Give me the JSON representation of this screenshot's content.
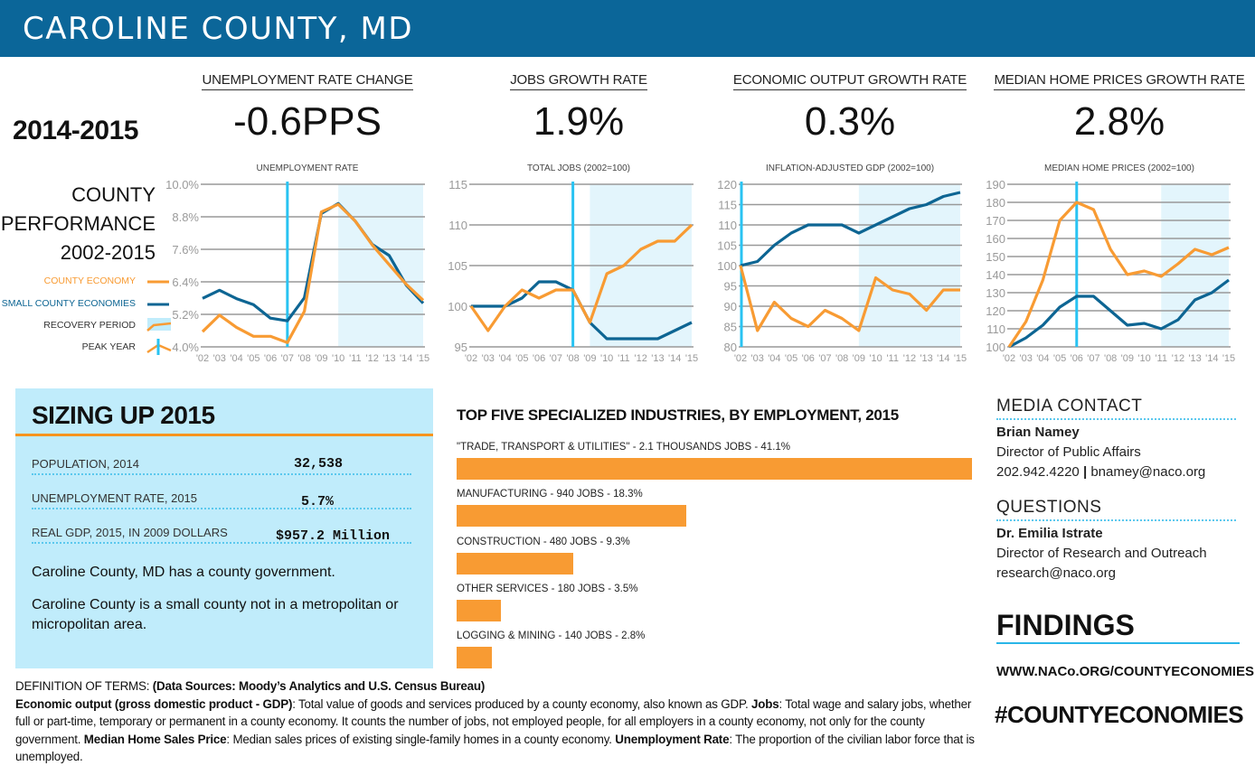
{
  "header": {
    "title": "CAROLINE COUNTY, MD"
  },
  "period": "2014-2015",
  "kpis": [
    {
      "label": "UNEMPLOYMENT RATE CHANGE",
      "value": "-0.6PPS"
    },
    {
      "label": "JOBS GROWTH RATE",
      "value": "1.9%"
    },
    {
      "label": "ECONOMIC OUTPUT GROWTH RATE",
      "value": "0.3%"
    },
    {
      "label": "MEDIAN HOME PRICES GROWTH RATE",
      "value": "2.8%"
    }
  ],
  "performance": {
    "title_lines": [
      "COUNTY",
      "PERFORMANCE",
      "2002-2015"
    ],
    "legend": {
      "county": "COUNTY ECONOMY",
      "small": "SMALL COUNTY ECONOMIES",
      "recovery": "RECOVERY PERIOD",
      "peak": "PEAK YEAR"
    }
  },
  "colors": {
    "county": "#f89b33",
    "small": "#0d6593",
    "peak": "#29c3f2",
    "recovery": "#e3f5fc",
    "grid": "#999999",
    "header": "#0b6699"
  },
  "chart_data": [
    {
      "type": "line",
      "title": "UNEMPLOYMENT RATE",
      "x": [
        2002,
        2003,
        2004,
        2005,
        2006,
        2007,
        2008,
        2009,
        2010,
        2011,
        2012,
        2013,
        2014,
        2015
      ],
      "x_tick_labels": [
        "'02",
        "'03",
        "'04",
        "'05",
        "'06",
        "'07",
        "'08",
        "'09",
        "'10",
        "'11",
        "'12",
        "'13",
        "'14",
        "'15"
      ],
      "ylim": [
        4.0,
        10.0
      ],
      "y_tick_labels": [
        "4.0%",
        "5.2%",
        "6.4%",
        "7.6%",
        "8.8%",
        "10.0%"
      ],
      "y_ticks": [
        4.0,
        5.2,
        6.4,
        7.6,
        8.8,
        10.0
      ],
      "peak_year": 2007,
      "recovery_start": 2010,
      "grid": true,
      "series": [
        {
          "name": "COUNTY ECONOMY",
          "values": [
            4.56,
            5.17,
            4.72,
            4.39,
            4.39,
            4.16,
            5.31,
            8.98,
            9.26,
            8.64,
            7.76,
            7.03,
            6.31,
            5.72
          ]
        },
        {
          "name": "SMALL COUNTY ECONOMIES",
          "values": [
            5.79,
            6.09,
            5.78,
            5.56,
            5.06,
            4.96,
            5.81,
            8.92,
            9.29,
            8.64,
            7.78,
            7.37,
            6.28,
            5.61
          ]
        }
      ]
    },
    {
      "type": "line",
      "title": "TOTAL JOBS (2002=100)",
      "x": [
        2002,
        2003,
        2004,
        2005,
        2006,
        2007,
        2008,
        2009,
        2010,
        2011,
        2012,
        2013,
        2014,
        2015
      ],
      "x_tick_labels": [
        "'02",
        "'03",
        "'04",
        "'05",
        "'06",
        "'07",
        "'08",
        "'09",
        "'10",
        "'11",
        "'12",
        "'13",
        "'14",
        "'15"
      ],
      "ylim": [
        95,
        115
      ],
      "y_tick_labels": [
        "95",
        "100",
        "105",
        "110",
        "115"
      ],
      "y_ticks": [
        95,
        100,
        105,
        110,
        115
      ],
      "peak_year": 2008,
      "recovery_start": 2009,
      "grid": true,
      "series": [
        {
          "name": "COUNTY ECONOMY",
          "values": [
            100,
            97,
            100,
            102,
            101,
            102,
            102,
            98,
            104,
            105,
            107,
            108,
            108,
            110
          ]
        },
        {
          "name": "SMALL COUNTY ECONOMIES",
          "values": [
            100,
            100,
            100,
            101,
            103,
            103,
            102,
            98,
            96,
            96,
            96,
            96,
            97,
            98
          ]
        }
      ]
    },
    {
      "type": "line",
      "title": "INFLATION-ADJUSTED GDP (2002=100)",
      "x": [
        2002,
        2003,
        2004,
        2005,
        2006,
        2007,
        2008,
        2009,
        2010,
        2011,
        2012,
        2013,
        2014,
        2015
      ],
      "x_tick_labels": [
        "'02",
        "'03",
        "'04",
        "'05",
        "'06",
        "'07",
        "'08",
        "'09",
        "'10",
        "'11",
        "'12",
        "'13",
        "'14",
        "'15"
      ],
      "ylim": [
        80,
        120
      ],
      "y_tick_labels": [
        "80",
        "85",
        "90",
        "95",
        "100",
        "105",
        "110",
        "115",
        "120"
      ],
      "y_ticks": [
        80,
        85,
        90,
        95,
        100,
        105,
        110,
        115,
        120
      ],
      "peak_year": 2002,
      "recovery_start": 2009,
      "grid": true,
      "series": [
        {
          "name": "COUNTY ECONOMY",
          "values": [
            100,
            84,
            91,
            87,
            85,
            89,
            87,
            84,
            97,
            94,
            93,
            89,
            94,
            94
          ]
        },
        {
          "name": "SMALL COUNTY ECONOMIES",
          "values": [
            100,
            101,
            105,
            108,
            110,
            110,
            110,
            108,
            110,
            112,
            114,
            115,
            117,
            118
          ]
        }
      ]
    },
    {
      "type": "line",
      "title": "MEDIAN HOME PRICES (2002=100)",
      "x": [
        2002,
        2003,
        2004,
        2005,
        2006,
        2007,
        2008,
        2009,
        2010,
        2011,
        2012,
        2013,
        2014,
        2015
      ],
      "x_tick_labels": [
        "'02",
        "'03",
        "'04",
        "'05",
        "'06",
        "'07",
        "'08",
        "'09",
        "'10",
        "'11",
        "'12",
        "'13",
        "'14",
        "'15"
      ],
      "ylim": [
        100,
        190
      ],
      "y_tick_labels": [
        "100",
        "110",
        "120",
        "130",
        "140",
        "150",
        "160",
        "170",
        "180",
        "190"
      ],
      "y_ticks": [
        100,
        110,
        120,
        130,
        140,
        150,
        160,
        170,
        180,
        190
      ],
      "peak_year": 2006,
      "recovery_start": 2011,
      "grid": true,
      "series": [
        {
          "name": "COUNTY ECONOMY",
          "values": [
            100,
            114,
            137,
            170,
            180,
            176,
            154,
            140,
            142,
            139,
            146,
            154,
            151,
            155
          ]
        },
        {
          "name": "SMALL COUNTY ECONOMIES",
          "values": [
            100,
            105,
            112,
            122,
            128,
            128,
            120,
            112,
            113,
            110,
            115,
            126,
            130,
            137
          ]
        }
      ]
    }
  ],
  "sizing": {
    "title": "SIZING UP 2015",
    "rows": [
      {
        "label": "POPULATION, 2014",
        "value": "32,538"
      },
      {
        "label": "UNEMPLOYMENT RATE, 2015",
        "value": "5.7%"
      },
      {
        "label": "REAL GDP, 2015, IN 2009 DOLLARS",
        "value": "$957.2 Million"
      }
    ],
    "paragraphs": [
      "Caroline County, MD has a county government.",
      "Caroline County is a small county not in a metropolitan or micropolitan area."
    ]
  },
  "industries": {
    "title": "TOP FIVE SPECIALIZED INDUSTRIES, BY EMPLOYMENT, 2015",
    "items": [
      {
        "label": "\"TRADE, TRANSPORT & UTILITIES\" - 2.1 THOUSANDS JOBS - 41.1%",
        "percent": 41.1
      },
      {
        "label": "MANUFACTURING - 940 JOBS - 18.3%",
        "percent": 18.3
      },
      {
        "label": "CONSTRUCTION - 480 JOBS - 9.3%",
        "percent": 9.3
      },
      {
        "label": "OTHER SERVICES - 180 JOBS - 3.5%",
        "percent": 3.5
      },
      {
        "label": "LOGGING & MINING - 140 JOBS - 2.8%",
        "percent": 2.8
      }
    ]
  },
  "contact": {
    "media_heading": "MEDIA CONTACT",
    "media_name": "Brian Namey",
    "media_role": "Director of Public Affairs",
    "media_phone": "202.942.4220",
    "media_email": "bnamey@naco.org",
    "questions_heading": "QUESTIONS",
    "q_name": "Dr. Emilia Istrate",
    "q_role": "Director of Research and Outreach",
    "q_email": "research@naco.org"
  },
  "findings": {
    "title": "FINDINGS",
    "url": "WWW.NACo.ORG/COUNTYECONOMIES",
    "hashtag": "#COUNTYECONOMIES"
  },
  "definitions": {
    "heading": "DEFINITION OF TERMS: ",
    "sources": "(Data Sources: Moody’s Analytics and U.S. Census Bureau)",
    "gdp_term": "Economic output (gross domestic product - GDP)",
    "gdp_def": ": Total value of goods and services produced by a county economy, also known as GDP. ",
    "jobs_term": "Jobs",
    "jobs_def": ": Total wage and salary jobs, whether full or part-time, temporary or permanent in a county economy. It counts the number of jobs, not employed people, for all employers in a county economy, not only for the county government. ",
    "home_term": "Median Home Sales Price",
    "home_def": ": Median sales prices of existing single-family homes in a county economy. ",
    "unemp_term": "Unemployment Rate",
    "unemp_def": ": The proportion of the civilian labor force that is unemployed."
  }
}
